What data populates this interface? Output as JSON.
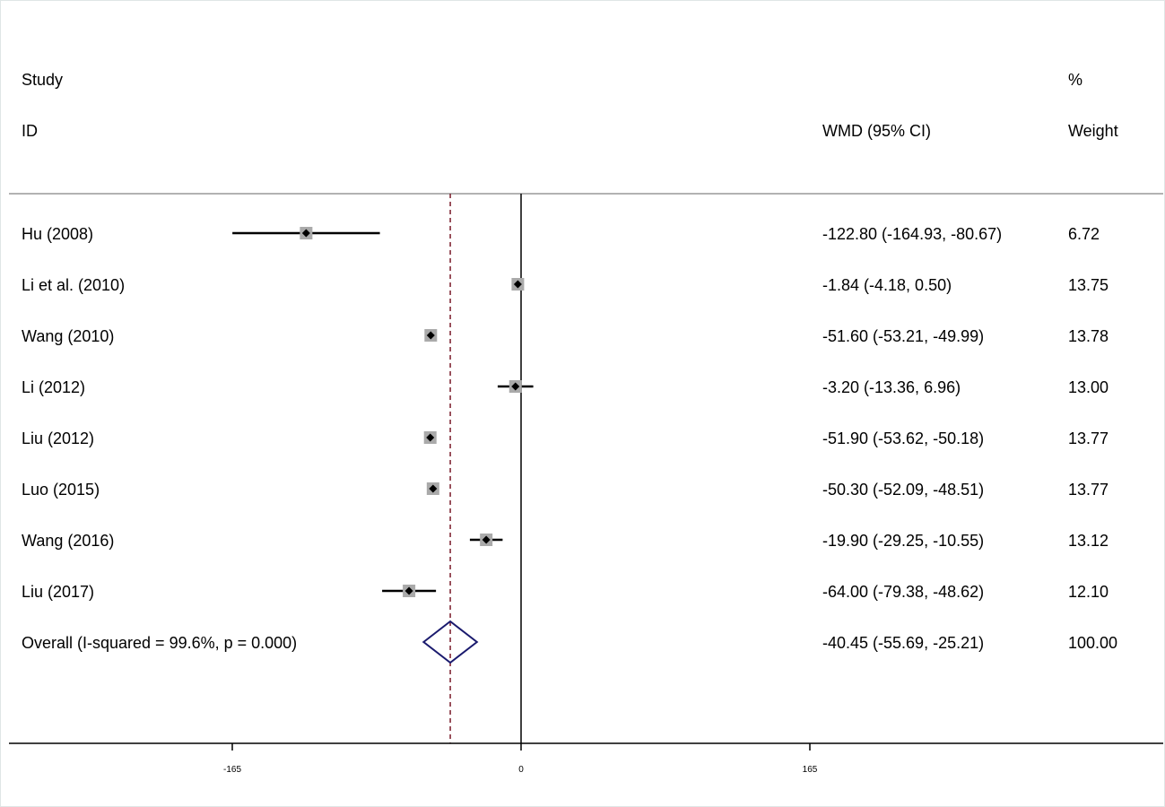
{
  "header": {
    "study_line1": "Study",
    "study_line2": "ID",
    "effect_label": "WMD (95% CI)",
    "weight_line1": "%",
    "weight_line2": "Weight"
  },
  "chart_data": {
    "type": "forest",
    "x_ticks": [
      -165,
      0,
      165
    ],
    "xlim": [
      -296,
      365
    ],
    "null_line": 0,
    "pooled_line": -40.45,
    "colors": {
      "ci_line": "#000000",
      "box": "#aaaaaa",
      "point": "#000000",
      "diamond": "#1a1a6e",
      "pooled_line": "#7a1c2a",
      "separator": "#999999"
    },
    "studies": [
      {
        "id": "Hu (2008)",
        "est": -122.8,
        "lo": -164.93,
        "hi": -80.67,
        "label": "-122.80 (-164.93, -80.67)",
        "weight": 6.72,
        "weight_label": "6.72"
      },
      {
        "id": "Li et al. (2010)",
        "est": -1.84,
        "lo": -4.18,
        "hi": 0.5,
        "label": "-1.84 (-4.18, 0.50)",
        "weight": 13.75,
        "weight_label": "13.75"
      },
      {
        "id": "Wang  (2010)",
        "est": -51.6,
        "lo": -53.21,
        "hi": -49.99,
        "label": "-51.60 (-53.21, -49.99)",
        "weight": 13.78,
        "weight_label": "13.78"
      },
      {
        "id": "Li  (2012)",
        "est": -3.2,
        "lo": -13.36,
        "hi": 6.96,
        "label": "-3.20 (-13.36, 6.96)",
        "weight": 13.0,
        "weight_label": "13.00"
      },
      {
        "id": "Liu (2012)",
        "est": -51.9,
        "lo": -53.62,
        "hi": -50.18,
        "label": "-51.90 (-53.62, -50.18)",
        "weight": 13.77,
        "weight_label": "13.77"
      },
      {
        "id": "Luo  (2015)",
        "est": -50.3,
        "lo": -52.09,
        "hi": -48.51,
        "label": "-50.30 (-52.09, -48.51)",
        "weight": 13.77,
        "weight_label": "13.77"
      },
      {
        "id": "Wang  (2016)",
        "est": -19.9,
        "lo": -29.25,
        "hi": -10.55,
        "label": "-19.90 (-29.25, -10.55)",
        "weight": 13.12,
        "weight_label": "13.12"
      },
      {
        "id": "Liu  (2017)",
        "est": -64.0,
        "lo": -79.38,
        "hi": -48.62,
        "label": "-64.00 (-79.38, -48.62)",
        "weight": 12.1,
        "weight_label": "12.10"
      }
    ],
    "overall": {
      "id": "Overall  (I-squared = 99.6%, p = 0.000)",
      "est": -40.45,
      "lo": -55.69,
      "hi": -25.21,
      "label": "-40.45 (-55.69, -25.21)",
      "weight_label": "100.00"
    }
  }
}
